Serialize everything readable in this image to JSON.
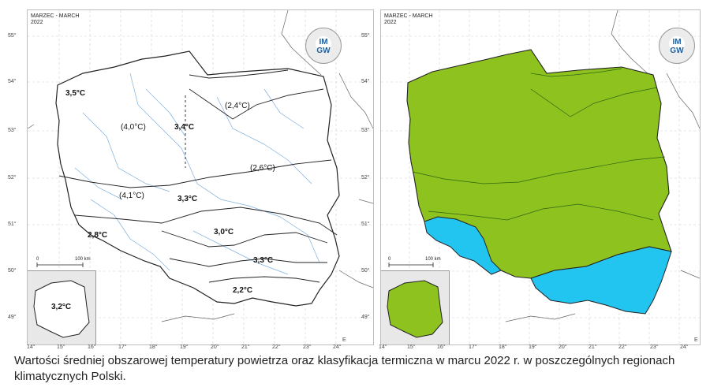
{
  "left_map": {
    "header_line1": "MARZEC - MARCH",
    "header_line2": "2022",
    "logo_top": "IM",
    "logo_bottom": "GW",
    "scale_zero": "0",
    "scale_label": "100 km",
    "inset_value": "3,2°C",
    "regions": [
      {
        "id": "r1",
        "label": "3,5°C",
        "bold": true
      },
      {
        "id": "r2",
        "label": "(4,0°C)",
        "bold": false
      },
      {
        "id": "r3",
        "label": "3,4°C",
        "bold": true
      },
      {
        "id": "r4",
        "label": "(2,4°C)",
        "bold": false
      },
      {
        "id": "r5",
        "label": "(2,6°C)",
        "bold": false
      },
      {
        "id": "r6",
        "label": "(4,1°C)",
        "bold": false
      },
      {
        "id": "r7",
        "label": "3,3°C",
        "bold": true
      },
      {
        "id": "r8",
        "label": "2,8°C",
        "bold": true
      },
      {
        "id": "r9",
        "label": "3,0°C",
        "bold": true
      },
      {
        "id": "r10",
        "label": "3,3°C",
        "bold": true
      },
      {
        "id": "r11",
        "label": "2,2°C",
        "bold": true
      }
    ]
  },
  "right_map": {
    "header_line1": "MARZEC - MARCH",
    "header_line2": "2022",
    "logo_top": "IM",
    "logo_bottom": "GW",
    "scale_zero": "0",
    "scale_label": "100 km",
    "classification_colors": {
      "main": "#8dc21f",
      "southern": "#22c4f0"
    }
  },
  "latitude_labels": [
    "55°",
    "54°",
    "53°",
    "52°",
    "51°",
    "50°",
    "49°"
  ],
  "longitude_labels": [
    "14°",
    "15°",
    "16°",
    "17°",
    "18°",
    "19°",
    "20°",
    "21°",
    "22°",
    "23°",
    "24°"
  ],
  "axis_letter": "E",
  "caption": "Wartości średniej obszarowej temperatury powietrza oraz klasyfikacja termiczna w marcu 2022 r. w poszczególnych regionach klimatycznych Polski."
}
